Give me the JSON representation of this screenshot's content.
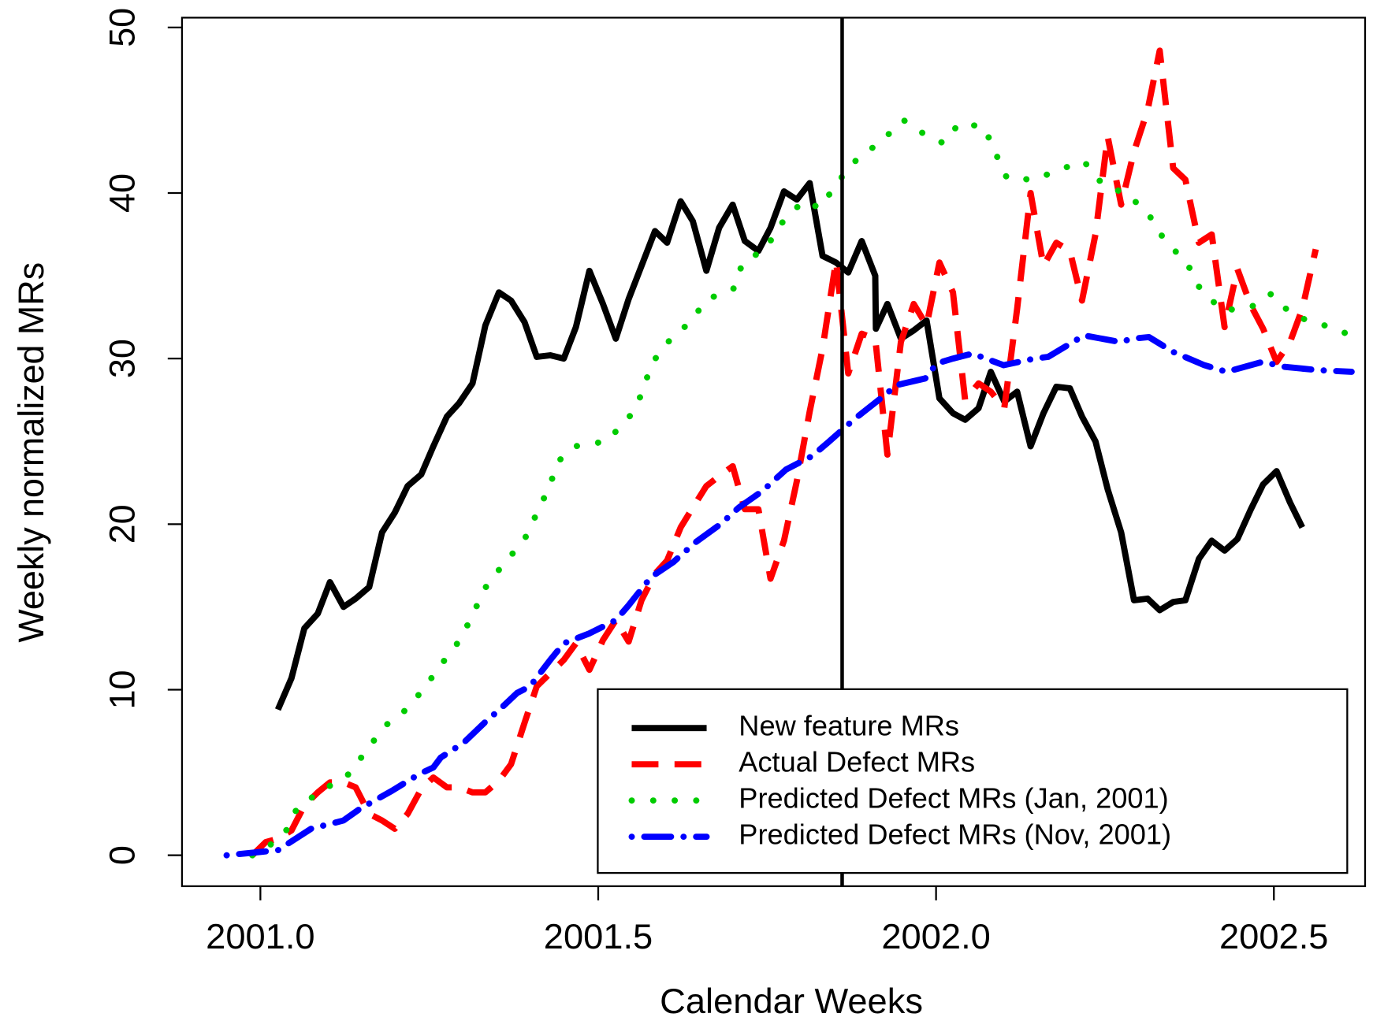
{
  "chart_data": {
    "type": "line",
    "xlabel": "Calendar Weeks",
    "ylabel": "Weekly normalized MRs",
    "xlim": [
      2000.884,
      2002.635
    ],
    "ylim": [
      -1.87,
      50.59
    ],
    "xticks": [
      {
        "value": 2001,
        "label": "2001.0"
      },
      2001.5,
      {
        "value": 2002,
        "label": "2002.0"
      },
      2002.5
    ],
    "yticks": [
      0,
      10,
      20,
      30,
      40,
      50
    ],
    "vline": 2001.861,
    "legend": "bottomright",
    "series": [
      {
        "name": "New feature MRs",
        "color": "#000000",
        "linestyle": "solid",
        "x": [
          2001.026,
          2001.046,
          2001.065,
          2001.085,
          2001.103,
          2001.123,
          2001.141,
          2001.161,
          2001.18,
          2001.199,
          2001.218,
          2001.238,
          2001.256,
          2001.276,
          2001.294,
          2001.314,
          2001.333,
          2001.353,
          2001.371,
          2001.391,
          2001.409,
          2001.429,
          2001.449,
          2001.467,
          2001.487,
          2001.507,
          2001.526,
          2001.545,
          2001.564,
          2001.584,
          2001.602,
          2001.622,
          2001.64,
          2001.66,
          2001.679,
          2001.699,
          2001.717,
          2001.737,
          2001.755,
          2001.775,
          2001.794,
          2001.813,
          2001.832,
          2001.852,
          2001.87,
          2001.89,
          2001.91,
          2001.911,
          2001.928,
          2001.948,
          2001.967,
          2001.986,
          2002.005,
          2002.025,
          2002.043,
          2002.063,
          2002.081,
          2002.101,
          2002.12,
          2002.14,
          2002.159,
          2002.178,
          2002.198,
          2002.216,
          2002.236,
          2002.254,
          2002.274,
          2002.293,
          2002.313,
          2002.331,
          2002.351,
          2002.369,
          2002.389,
          2002.408,
          2002.427,
          2002.446,
          2002.466,
          2002.484,
          2002.504,
          2002.524,
          2002.542
        ],
        "values": [
          8.8,
          10.7,
          13.7,
          14.6,
          16.5,
          15.0,
          15.5,
          16.2,
          19.5,
          20.7,
          22.3,
          23.0,
          24.7,
          26.5,
          27.3,
          28.5,
          32.0,
          34.0,
          33.5,
          32.2,
          30.1,
          30.2,
          30.0,
          31.9,
          35.3,
          33.3,
          31.2,
          33.6,
          35.6,
          37.7,
          37.0,
          39.5,
          38.3,
          35.3,
          37.9,
          39.3,
          37.1,
          36.5,
          37.9,
          40.1,
          39.6,
          40.6,
          36.2,
          35.8,
          35.2,
          37.1,
          35.0,
          31.8,
          33.3,
          31.2,
          31.7,
          32.3,
          27.6,
          26.7,
          26.3,
          27.0,
          29.2,
          27.4,
          28.0,
          24.7,
          26.7,
          28.3,
          28.2,
          26.5,
          25.0,
          22.1,
          19.5,
          15.4,
          15.5,
          14.8,
          15.3,
          15.4,
          17.9,
          19.0,
          18.4,
          19.1,
          20.9,
          22.4,
          23.2,
          21.3,
          19.8
        ]
      },
      {
        "name": "Actual Defect MRs",
        "color": "#ff0000",
        "linestyle": "dashed",
        "x": [
          2000.988,
          2001.008,
          2001.026,
          2001.046,
          2001.065,
          2001.085,
          2001.103,
          2001.123,
          2001.141,
          2001.161,
          2001.18,
          2001.199,
          2001.218,
          2001.238,
          2001.256,
          2001.276,
          2001.294,
          2001.314,
          2001.333,
          2001.353,
          2001.371,
          2001.391,
          2001.409,
          2001.429,
          2001.449,
          2001.467,
          2001.487,
          2001.507,
          2001.526,
          2001.545,
          2001.564,
          2001.584,
          2001.602,
          2001.622,
          2001.64,
          2001.66,
          2001.679,
          2001.699,
          2001.717,
          2001.737,
          2001.755,
          2001.775,
          2001.794,
          2001.813,
          2001.832,
          2001.852,
          2001.87,
          2001.89,
          2001.91,
          2001.928,
          2001.948,
          2001.967,
          2001.986,
          2002.005,
          2002.025,
          2002.043,
          2002.063,
          2002.081,
          2002.101,
          2002.12,
          2002.14,
          2002.159,
          2002.178,
          2002.198,
          2002.216,
          2002.236,
          2002.254,
          2002.274,
          2002.293,
          2002.313,
          2002.331,
          2002.351,
          2002.369,
          2002.389,
          2002.408,
          2002.427,
          2002.446,
          2002.466,
          2002.484,
          2002.504,
          2002.524,
          2002.542,
          2002.562
        ],
        "values": [
          0,
          0.8,
          1.0,
          1.5,
          3.0,
          3.8,
          4.4,
          4.4,
          4.1,
          2.5,
          2.1,
          1.6,
          2.5,
          4.0,
          4.7,
          4.1,
          4.1,
          3.8,
          3.8,
          4.5,
          5.5,
          8.0,
          10.2,
          11.0,
          11.8,
          12.8,
          11.2,
          13.0,
          14.2,
          12.9,
          15.4,
          17.0,
          17.8,
          19.8,
          21.0,
          22.3,
          22.9,
          23.5,
          20.9,
          20.9,
          16.7,
          19.0,
          22.6,
          26.8,
          30.6,
          35.9,
          29.1,
          31.5,
          31.2,
          24.2,
          31.0,
          33.3,
          32.0,
          35.8,
          34.0,
          27.5,
          28.5,
          28.0,
          27.0,
          33.0,
          40.0,
          35.6,
          37.0,
          36.5,
          33.5,
          37.5,
          43.4,
          39.3,
          42.5,
          45.0,
          48.6,
          41.5,
          40.8,
          37.0,
          37.5,
          31.9,
          35.4,
          33.2,
          31.8,
          29.8,
          31.0,
          33.0,
          36.6
        ]
      },
      {
        "name": "Predicted Defect MRs (Jan, 2001)",
        "color": "#00cc00",
        "linestyle": "dotted",
        "x": [
          2000.988,
          2001.008,
          2001.037,
          2001.055,
          2001.091,
          2001.131,
          2001.184,
          2001.219,
          2001.246,
          2001.271,
          2001.297,
          2001.316,
          2001.335,
          2001.362,
          2001.39,
          2001.427,
          2001.441,
          2001.466,
          2001.512,
          2001.545,
          2001.565,
          2001.578,
          2001.598,
          2001.633,
          2001.662,
          2001.7,
          2001.714,
          2001.747,
          2001.772,
          2001.803,
          2001.829,
          2001.853,
          2001.882,
          2001.918,
          2001.952,
          2001.981,
          2002.011,
          2002.034,
          2002.071,
          2002.087,
          2002.105,
          2002.146,
          2002.181,
          2002.219,
          2002.247,
          2002.285,
          2002.318,
          2002.339,
          2002.371,
          2002.391,
          2002.424,
          2002.466,
          2002.496,
          2002.528,
          2002.575,
          2002.615
        ],
        "values": [
          0,
          0.4,
          1.4,
          2.9,
          3.9,
          4.9,
          7.8,
          8.9,
          10.3,
          11.7,
          13.1,
          14.7,
          16.3,
          17.7,
          19.0,
          22.2,
          23.8,
          24.7,
          25.0,
          26.4,
          27.9,
          29.6,
          30.8,
          32.1,
          33.6,
          34.2,
          35.8,
          36.6,
          38.2,
          39.5,
          39.1,
          40.6,
          42.0,
          43.1,
          44.4,
          43.6,
          43.0,
          44.2,
          44.0,
          42.5,
          40.9,
          40.8,
          41.4,
          41.9,
          40.5,
          39.9,
          38.5,
          37.1,
          35.8,
          34.2,
          32.9,
          33.1,
          33.9,
          32.6,
          32.0,
          31.4
        ]
      },
      {
        "name": "Predicted Defect MRs (Nov, 2001)",
        "color": "#0000ff",
        "linestyle": "dotdash",
        "x": [
          2000.95,
          2001,
          2001.026,
          2001.037,
          2001.075,
          2001.123,
          2001.147,
          2001.195,
          2001.235,
          2001.256,
          2001.267,
          2001.301,
          2001.334,
          2001.354,
          2001.38,
          2001.399,
          2001.429,
          2001.449,
          2001.487,
          2001.526,
          2001.545,
          2001.578,
          2001.611,
          2001.644,
          2001.681,
          2001.708,
          2001.743,
          2001.778,
          2001.816,
          2001.842,
          2001.878,
          2001.915,
          2001.942,
          2001.984,
          2002.001,
          2002.025,
          2002.054,
          2002.1,
          2002.146,
          2002.166,
          2002.219,
          2002.272,
          2002.291,
          2002.315,
          2002.351,
          2002.397,
          2002.43,
          2002.483,
          2002.516,
          2002.565,
          2002.615
        ],
        "values": [
          0,
          0.2,
          0.3,
          0.6,
          1.6,
          2.1,
          2.8,
          3.9,
          4.9,
          5.3,
          5.9,
          6.8,
          8.1,
          8.8,
          9.8,
          10.2,
          11.8,
          12.8,
          13.4,
          14.2,
          15.1,
          16.8,
          17.7,
          18.9,
          20.0,
          21.0,
          22.0,
          23.3,
          24.1,
          25.0,
          26.3,
          27.5,
          28.4,
          28.8,
          29.7,
          30.0,
          30.3,
          29.6,
          30.0,
          30.1,
          31.4,
          31.0,
          31.2,
          31.3,
          30.4,
          29.6,
          29.2,
          29.8,
          29.5,
          29.3,
          29.2
        ]
      }
    ]
  }
}
